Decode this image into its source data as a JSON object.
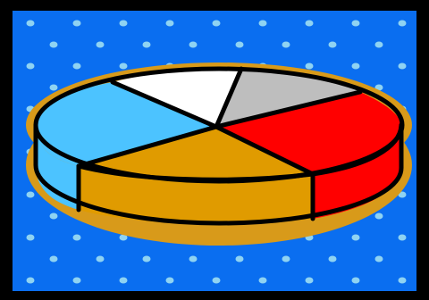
{
  "illustration": {
    "subject": "3d-pie-chart-clipart",
    "colors": {
      "frame": "#000000",
      "background": "#0A6EF0",
      "dots": "#8FD3F2",
      "rim": "#D89A1A",
      "outline": "#000000",
      "slice_white": "#FFFFFF",
      "slice_gray": "#BEBEBE",
      "slice_red": "#FF0000",
      "slice_gold": "#E09B00",
      "slice_cyan": "#4CC3FF"
    },
    "slices": [
      {
        "name": "white",
        "fraction": 0.1
      },
      {
        "name": "gray",
        "fraction": 0.1
      },
      {
        "name": "red",
        "fraction": 0.2
      },
      {
        "name": "gold",
        "fraction": 0.36
      },
      {
        "name": "cyan",
        "fraction": 0.24
      }
    ]
  }
}
